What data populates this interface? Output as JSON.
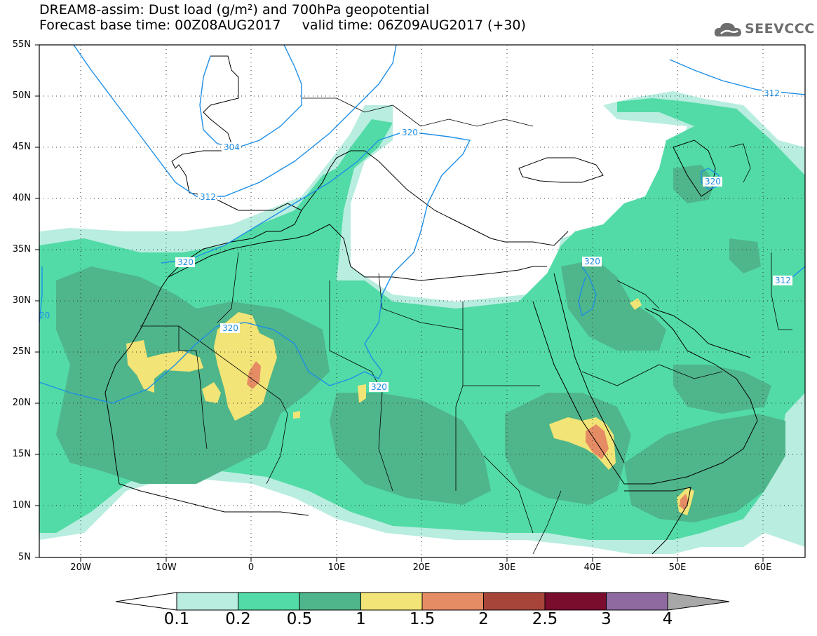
{
  "title": {
    "line1": "DREAM8-assim: Dust load (g/m²) and 700hPa geopotential",
    "line2": "Forecast base time: 00Z08AUG2017     valid time: 06Z09AUG2017 (+30)"
  },
  "logo": {
    "text": "SEEVCCC",
    "icon": "cloud-icon"
  },
  "map": {
    "lat_labels": [
      "55N",
      "50N",
      "45N",
      "40N",
      "35N",
      "30N",
      "25N",
      "20N",
      "15N",
      "10N",
      "5N"
    ],
    "lon_labels": [
      "20W",
      "10W",
      "0",
      "10E",
      "20E",
      "30E",
      "40E",
      "50E",
      "60E"
    ],
    "contour_labels": [
      "304",
      "312",
      "320",
      "320",
      "320",
      "320",
      "320",
      "312",
      "312",
      "20"
    ]
  },
  "colorbar": {
    "labels": [
      "0.1",
      "0.2",
      "0.5",
      "1",
      "1.5",
      "2",
      "2.5",
      "3",
      "4"
    ],
    "colors": [
      "#ffffff",
      "#b8ede0",
      "#52dba6",
      "#4fb58a",
      "#f2e476",
      "#e68c64",
      "#a8453a",
      "#7a0c2e",
      "#8f6aa0",
      "#a8a8a8"
    ]
  },
  "palette": {
    "land": "#ffffff",
    "contour": "#1f8fe6",
    "dust_01": "#b8ede0",
    "dust_02": "#52dba6",
    "dust_05": "#4fb58a",
    "dust_1": "#f2e476",
    "dust_15": "#e68c64"
  }
}
